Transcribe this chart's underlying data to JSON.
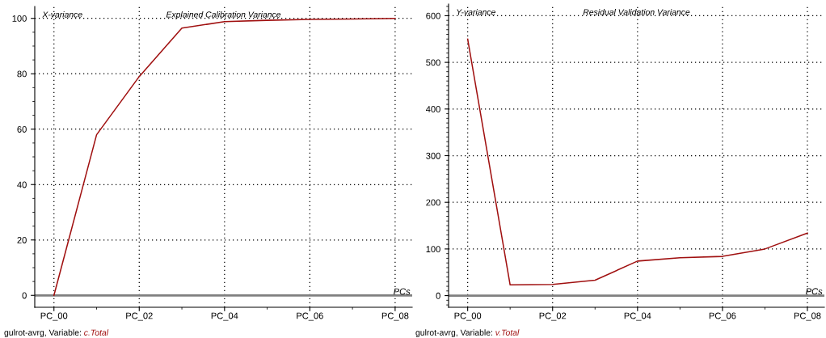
{
  "chart_data": [
    {
      "type": "line",
      "title": "Explained Calibration Variance",
      "ylabel": "X-variance",
      "xlabel": "PCs",
      "categories": [
        "PC_00",
        null,
        "PC_02",
        null,
        "PC_04",
        null,
        "PC_06",
        null,
        "PC_08"
      ],
      "series": [
        {
          "color": "#a01010",
          "values": [
            0,
            58,
            79,
            96.5,
            98.8,
            99.3,
            99.6,
            99.8,
            100
          ]
        }
      ],
      "ylim": [
        -4.3,
        104.3
      ],
      "yticks": [
        0,
        20,
        40,
        60,
        80,
        100
      ],
      "grid": true,
      "marker": "none",
      "line_style": "solid",
      "ref_lines": [
        {
          "axis": "y",
          "value": 0,
          "color": "#808080"
        }
      ],
      "annotations": [
        "gulrot-avrg, Variable:",
        "c.Total"
      ]
    },
    {
      "type": "line",
      "title": "Residual Validation Variance",
      "ylabel": "Y-variance",
      "xlabel": "PCs",
      "categories": [
        "PC_00",
        null,
        "PC_02",
        null,
        "PC_04",
        null,
        "PC_06",
        null,
        "PC_08"
      ],
      "series": [
        {
          "color": "#a01010",
          "values": [
            550,
            23,
            24,
            33,
            74,
            81,
            84,
            100,
            134
          ]
        }
      ],
      "ylim": [
        -25,
        625
      ],
      "yticks": [
        0,
        100,
        200,
        300,
        400,
        500,
        600
      ],
      "grid": true,
      "marker": "none",
      "line_style": "solid",
      "ref_lines": [
        {
          "axis": "y",
          "value": 0,
          "color": "#808080"
        }
      ],
      "annotations": [
        "gulrot-avrg, Variable:",
        "v.Total"
      ]
    }
  ]
}
